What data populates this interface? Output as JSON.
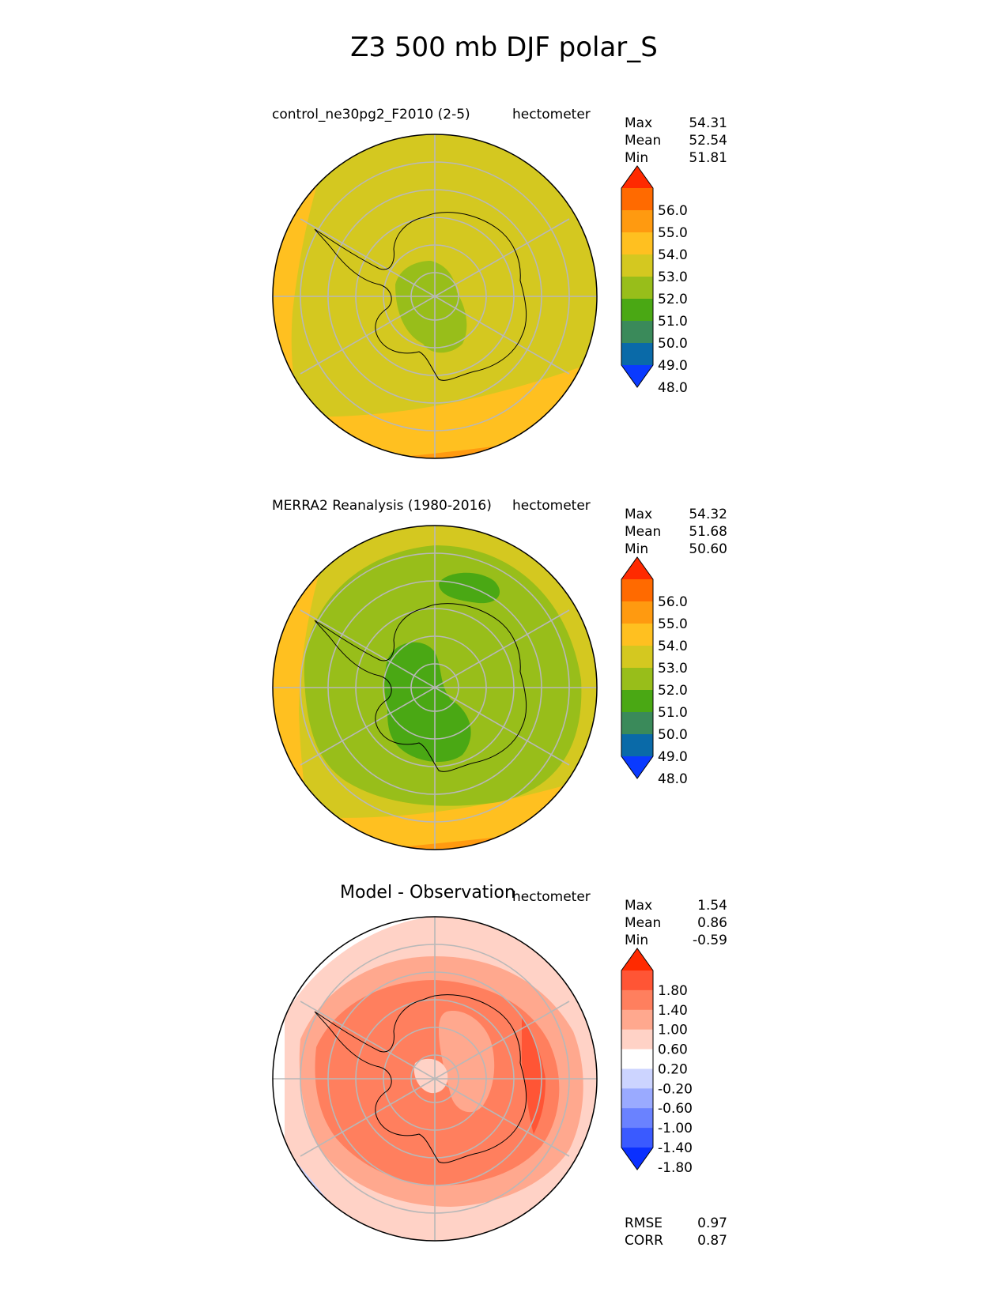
{
  "title": "Z3 500 mb DJF polar_S",
  "panels": [
    {
      "title": "control_ne30pg2_F2010 (2-5)",
      "units": "hectometer",
      "stats": [
        [
          "Max",
          "54.31"
        ],
        [
          "Mean",
          "52.54"
        ],
        [
          "Min",
          "51.81"
        ]
      ],
      "colorbar": {
        "labels": [
          "56.0",
          "55.0",
          "54.0",
          "53.0",
          "52.0",
          "51.0",
          "50.0",
          "49.0",
          "48.0"
        ],
        "colors": [
          "#ff2a00",
          "#ff6a00",
          "#ff9a10",
          "#ffc020",
          "#d4c820",
          "#98be1a",
          "#4aa814",
          "#3a8a5a",
          "#0a6aa8",
          "#0a3aff"
        ]
      }
    },
    {
      "title": "MERRA2 Reanalysis (1980-2016)",
      "units": "hectometer",
      "stats": [
        [
          "Max",
          "54.32"
        ],
        [
          "Mean",
          "51.68"
        ],
        [
          "Min",
          "50.60"
        ]
      ],
      "colorbar": {
        "labels": [
          "56.0",
          "55.0",
          "54.0",
          "53.0",
          "52.0",
          "51.0",
          "50.0",
          "49.0",
          "48.0"
        ],
        "colors": [
          "#ff2a00",
          "#ff6a00",
          "#ff9a10",
          "#ffc020",
          "#d4c820",
          "#98be1a",
          "#4aa814",
          "#3a8a5a",
          "#0a6aa8",
          "#0a3aff"
        ]
      }
    },
    {
      "title": "Model - Observation",
      "units": "hectometer",
      "stats": [
        [
          "Max",
          "1.54"
        ],
        [
          "Mean",
          "0.86"
        ],
        [
          "Min",
          "-0.59"
        ]
      ],
      "colorbar": {
        "labels": [
          "1.80",
          "1.40",
          "1.00",
          "0.60",
          "0.20",
          "-0.20",
          "-0.60",
          "-1.00",
          "-1.40",
          "-1.80"
        ],
        "colors": [
          "#ff2a00",
          "#ff5535",
          "#ff7f5e",
          "#ffa88e",
          "#ffd2c6",
          "#ffffff",
          "#ccd4ff",
          "#9aaaff",
          "#6a82ff",
          "#3a5aff",
          "#0a30ff"
        ]
      },
      "extra_stats": [
        [
          "RMSE",
          "0.97"
        ],
        [
          "CORR",
          "0.87"
        ]
      ]
    }
  ]
}
